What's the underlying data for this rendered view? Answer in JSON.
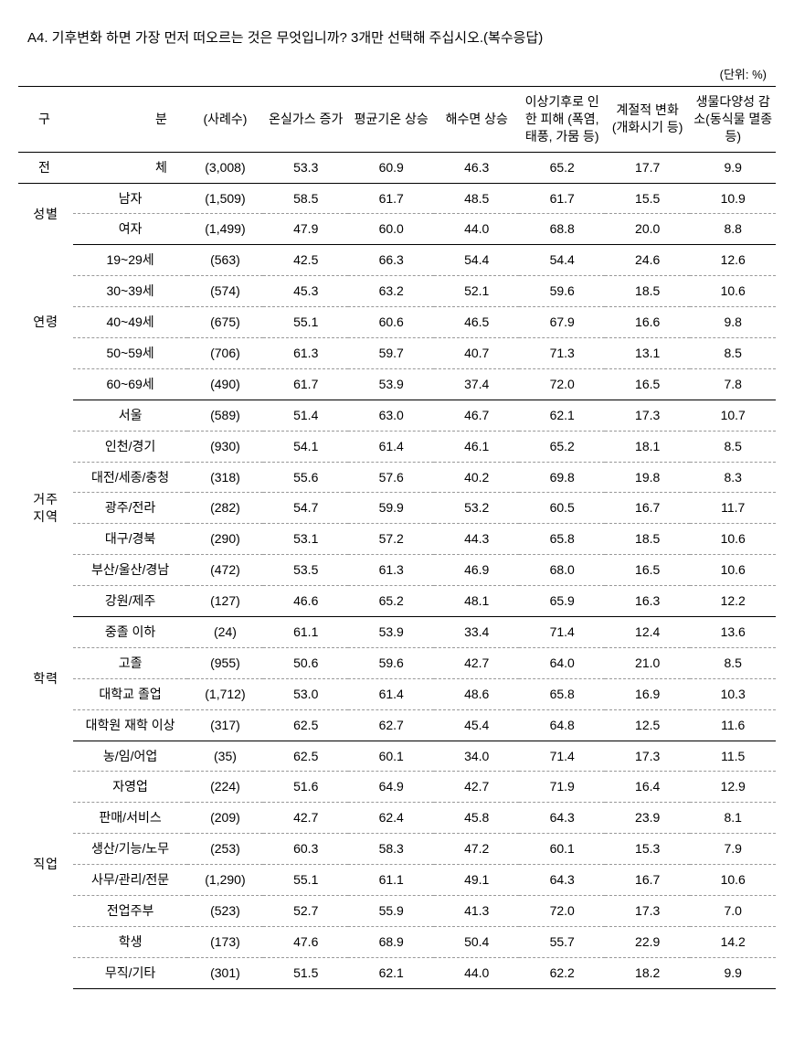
{
  "title": "A4. 기후변화 하면 가장 먼저 떠오르는 것은 무엇입니까? 3개만 선택해 주십시오.(복수응답)",
  "unit": "(단위: %)",
  "header": {
    "cat_a": "구",
    "cat_b": "분",
    "n": "(사례수)",
    "c1": "온실가스 증가",
    "c2": "평균기온 상승",
    "c3": "해수면 상승",
    "c4": "이상기후로 인한 피해 (폭염, 태풍, 가뭄 등)",
    "c5": "계절적 변화 (개화시기 등)",
    "c6": "생물다양성 감소(동식물 멸종 등)"
  },
  "total": {
    "label_a": "전",
    "label_b": "체",
    "n": "(3,008)",
    "v": [
      "53.3",
      "60.9",
      "46.3",
      "65.2",
      "17.7",
      "9.9"
    ]
  },
  "groups": [
    {
      "cat": "성별",
      "rows": [
        {
          "sub": "남자",
          "n": "(1,509)",
          "v": [
            "58.5",
            "61.7",
            "48.5",
            "61.7",
            "15.5",
            "10.9"
          ]
        },
        {
          "sub": "여자",
          "n": "(1,499)",
          "v": [
            "47.9",
            "60.0",
            "44.0",
            "68.8",
            "20.0",
            "8.8"
          ]
        }
      ]
    },
    {
      "cat": "연령",
      "rows": [
        {
          "sub": "19~29세",
          "n": "(563)",
          "v": [
            "42.5",
            "66.3",
            "54.4",
            "54.4",
            "24.6",
            "12.6"
          ]
        },
        {
          "sub": "30~39세",
          "n": "(574)",
          "v": [
            "45.3",
            "63.2",
            "52.1",
            "59.6",
            "18.5",
            "10.6"
          ]
        },
        {
          "sub": "40~49세",
          "n": "(675)",
          "v": [
            "55.1",
            "60.6",
            "46.5",
            "67.9",
            "16.6",
            "9.8"
          ]
        },
        {
          "sub": "50~59세",
          "n": "(706)",
          "v": [
            "61.3",
            "59.7",
            "40.7",
            "71.3",
            "13.1",
            "8.5"
          ]
        },
        {
          "sub": "60~69세",
          "n": "(490)",
          "v": [
            "61.7",
            "53.9",
            "37.4",
            "72.0",
            "16.5",
            "7.8"
          ]
        }
      ]
    },
    {
      "cat": "거주 지역",
      "rows": [
        {
          "sub": "서울",
          "n": "(589)",
          "v": [
            "51.4",
            "63.0",
            "46.7",
            "62.1",
            "17.3",
            "10.7"
          ]
        },
        {
          "sub": "인천/경기",
          "n": "(930)",
          "v": [
            "54.1",
            "61.4",
            "46.1",
            "65.2",
            "18.1",
            "8.5"
          ]
        },
        {
          "sub": "대전/세종/충청",
          "n": "(318)",
          "v": [
            "55.6",
            "57.6",
            "40.2",
            "69.8",
            "19.8",
            "8.3"
          ]
        },
        {
          "sub": "광주/전라",
          "n": "(282)",
          "v": [
            "54.7",
            "59.9",
            "53.2",
            "60.5",
            "16.7",
            "11.7"
          ]
        },
        {
          "sub": "대구/경북",
          "n": "(290)",
          "v": [
            "53.1",
            "57.2",
            "44.3",
            "65.8",
            "18.5",
            "10.6"
          ]
        },
        {
          "sub": "부산/울산/경남",
          "n": "(472)",
          "v": [
            "53.5",
            "61.3",
            "46.9",
            "68.0",
            "16.5",
            "10.6"
          ]
        },
        {
          "sub": "강원/제주",
          "n": "(127)",
          "v": [
            "46.6",
            "65.2",
            "48.1",
            "65.9",
            "16.3",
            "12.2"
          ]
        }
      ]
    },
    {
      "cat": "학력",
      "rows": [
        {
          "sub": "중졸 이하",
          "n": "(24)",
          "v": [
            "61.1",
            "53.9",
            "33.4",
            "71.4",
            "12.4",
            "13.6"
          ]
        },
        {
          "sub": "고졸",
          "n": "(955)",
          "v": [
            "50.6",
            "59.6",
            "42.7",
            "64.0",
            "21.0",
            "8.5"
          ]
        },
        {
          "sub": "대학교 졸업",
          "n": "(1,712)",
          "v": [
            "53.0",
            "61.4",
            "48.6",
            "65.8",
            "16.9",
            "10.3"
          ]
        },
        {
          "sub": "대학원 재학 이상",
          "n": "(317)",
          "v": [
            "62.5",
            "62.7",
            "45.4",
            "64.8",
            "12.5",
            "11.6"
          ]
        }
      ]
    },
    {
      "cat": "직업",
      "rows": [
        {
          "sub": "농/임/어업",
          "n": "(35)",
          "v": [
            "62.5",
            "60.1",
            "34.0",
            "71.4",
            "17.3",
            "11.5"
          ]
        },
        {
          "sub": "자영업",
          "n": "(224)",
          "v": [
            "51.6",
            "64.9",
            "42.7",
            "71.9",
            "16.4",
            "12.9"
          ]
        },
        {
          "sub": "판매/서비스",
          "n": "(209)",
          "v": [
            "42.7",
            "62.4",
            "45.8",
            "64.3",
            "23.9",
            "8.1"
          ]
        },
        {
          "sub": "생산/기능/노무",
          "n": "(253)",
          "v": [
            "60.3",
            "58.3",
            "47.2",
            "60.1",
            "15.3",
            "7.9"
          ]
        },
        {
          "sub": "사무/관리/전문",
          "n": "(1,290)",
          "v": [
            "55.1",
            "61.1",
            "49.1",
            "64.3",
            "16.7",
            "10.6"
          ]
        },
        {
          "sub": "전업주부",
          "n": "(523)",
          "v": [
            "52.7",
            "55.9",
            "41.3",
            "72.0",
            "17.3",
            "7.0"
          ]
        },
        {
          "sub": "학생",
          "n": "(173)",
          "v": [
            "47.6",
            "68.9",
            "50.4",
            "55.7",
            "22.9",
            "14.2"
          ]
        },
        {
          "sub": "무직/기타",
          "n": "(301)",
          "v": [
            "51.5",
            "62.1",
            "44.0",
            "62.2",
            "18.2",
            "9.9"
          ]
        }
      ]
    }
  ]
}
